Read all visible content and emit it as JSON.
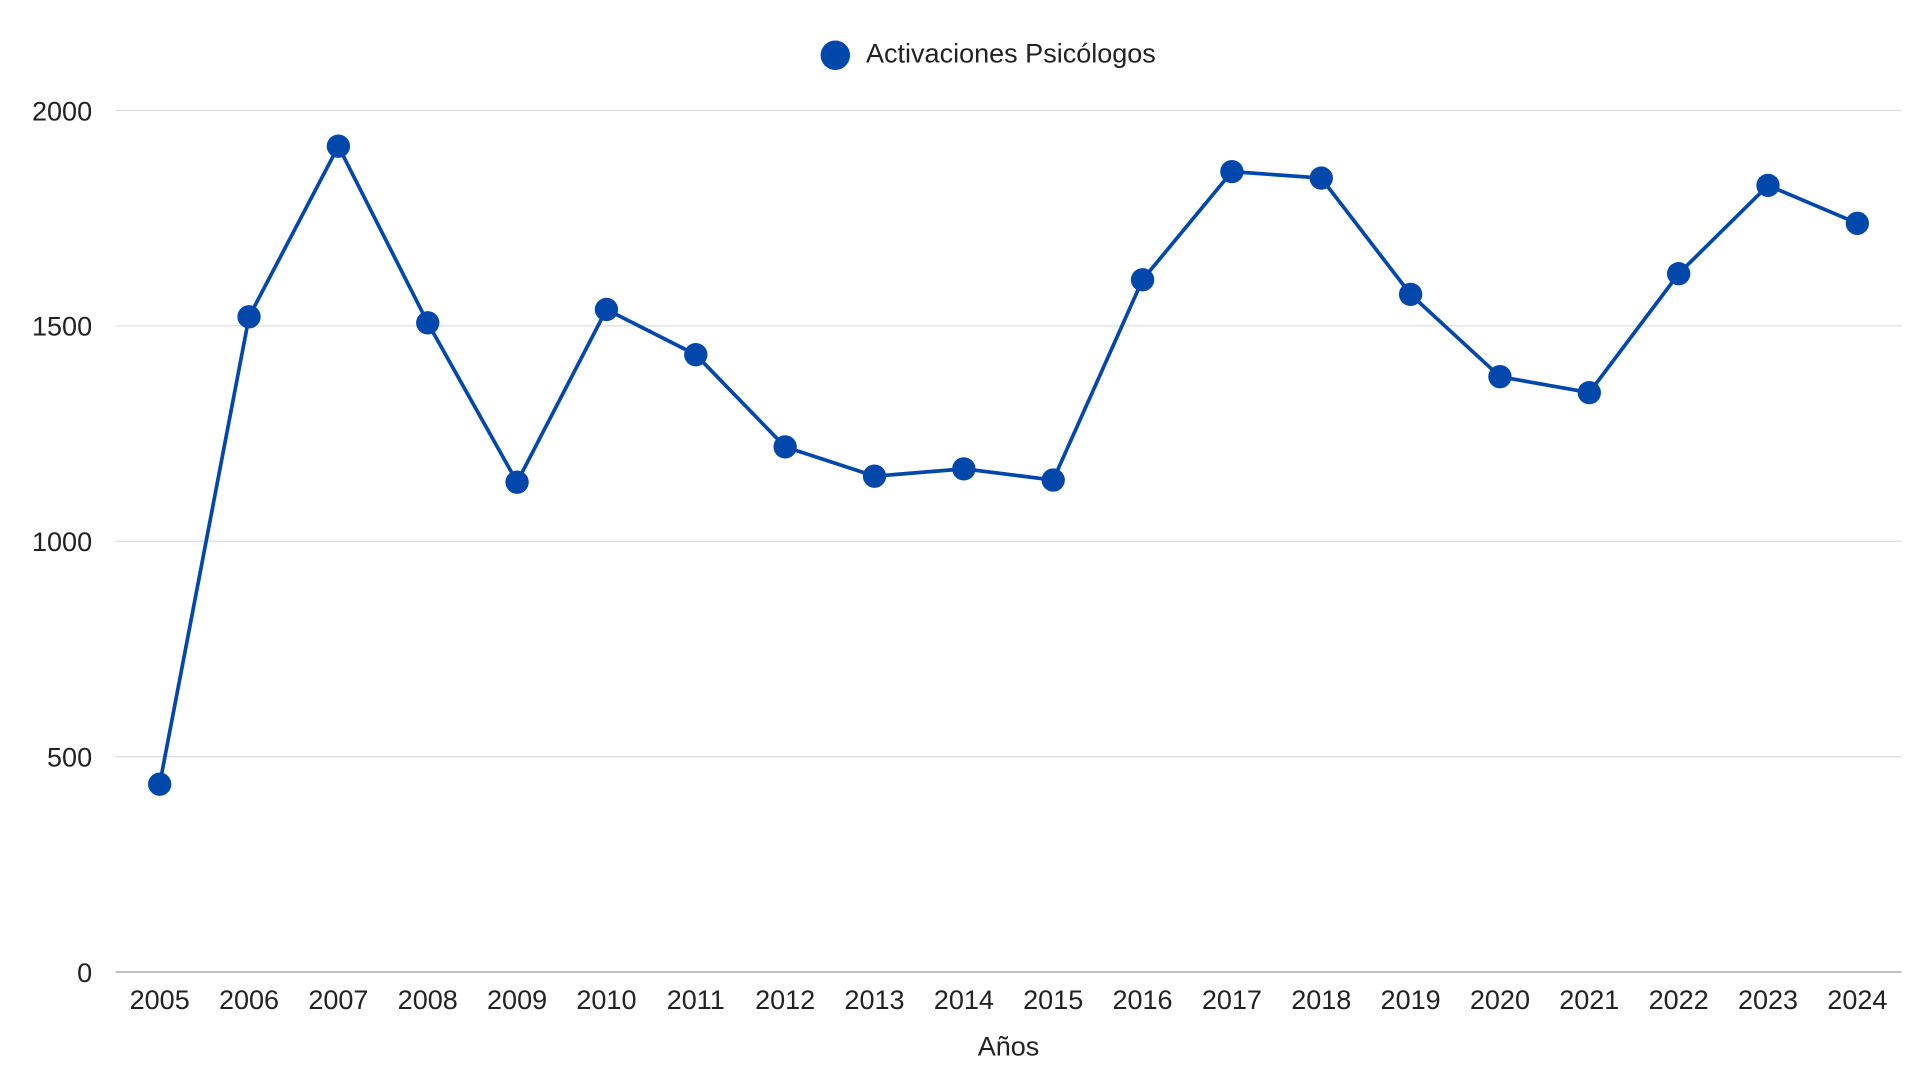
{
  "chart_data": {
    "type": "line",
    "title": "",
    "legend": {
      "entries": [
        "Activaciones Psicólogos"
      ],
      "placement": "top-center"
    },
    "xlabel": "Años",
    "ylabel": "",
    "ylim": [
      0,
      2000
    ],
    "yticks": [
      "0",
      "500",
      "1000",
      "1500",
      "2000"
    ],
    "grid": true,
    "categories": [
      "2005",
      "2006",
      "2007",
      "2008",
      "2009",
      "2010",
      "2011",
      "2012",
      "2013",
      "2014",
      "2015",
      "2016",
      "2017",
      "2018",
      "2019",
      "2020",
      "2021",
      "2022",
      "2023",
      "2024"
    ],
    "series": [
      {
        "name": "Activaciones Psicólogos",
        "color": "#0047AB",
        "values": [
          436,
          1521,
          1917,
          1507,
          1137,
          1538,
          1433,
          1219,
          1151,
          1168,
          1142,
          1607,
          1858,
          1843,
          1573,
          1382,
          1345,
          1621,
          1826,
          1738
        ]
      }
    ]
  }
}
